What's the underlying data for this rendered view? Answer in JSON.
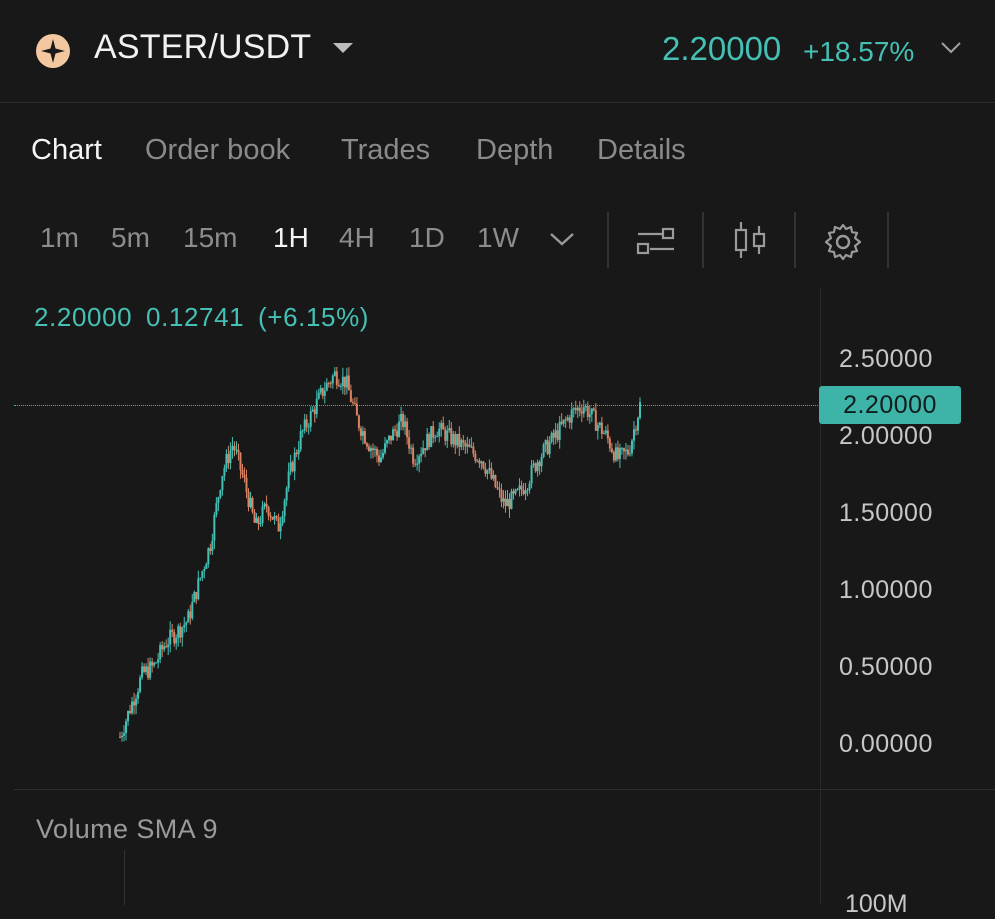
{
  "header": {
    "pair": "ASTER/USDT",
    "price": "2.20000",
    "change_pct": "+18.57%",
    "accent_up": "#45c0b5",
    "accent_down": "#d98364"
  },
  "tabs": [
    "Chart",
    "Order book",
    "Trades",
    "Depth",
    "Details"
  ],
  "active_tab": "Chart",
  "timeframes": [
    "1m",
    "5m",
    "15m",
    "1H",
    "4H",
    "1D",
    "1W"
  ],
  "active_timeframe": "1H",
  "toolbar_icons": [
    "chevron-down-icon",
    "indicator-settings-icon",
    "candlestick-icon",
    "gear-icon"
  ],
  "chart_info": {
    "last": "2.20000",
    "change": "0.12741",
    "change_pct": "(+6.15%)"
  },
  "y_axis": [
    "2.50000",
    "2.00000",
    "1.50000",
    "1.00000",
    "0.50000",
    "0.00000"
  ],
  "current_price_tag": "2.20000",
  "volume": {
    "label": "Volume SMA 9",
    "axis_label": "100M"
  },
  "chart_data": {
    "type": "line",
    "title": "",
    "xlabel": "",
    "ylabel": "",
    "ylim": [
      0,
      2.5
    ],
    "series": [
      {
        "values": [
          0.04,
          0.25,
          0.45,
          0.5,
          0.65,
          0.72,
          0.8,
          1.05,
          1.3,
          1.75,
          1.95,
          1.7,
          1.4,
          1.55,
          1.4,
          1.75,
          2.0,
          2.15,
          2.3,
          2.4,
          2.35,
          2.1,
          1.95,
          1.85,
          2.0,
          2.1,
          1.85,
          1.95,
          2.05,
          2.0,
          1.95,
          1.9,
          1.85,
          1.7,
          1.55,
          1.6,
          1.7,
          1.85,
          1.95,
          2.05,
          2.15,
          2.2,
          2.1,
          2.0,
          1.85,
          1.9,
          2.2
        ]
      }
    ]
  }
}
